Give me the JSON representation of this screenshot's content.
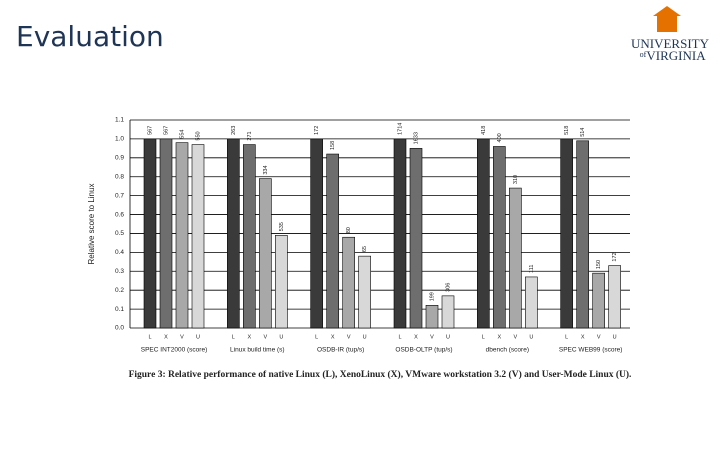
{
  "slide": {
    "title": "Evaluation",
    "logo": [
      "UNIVERSITY",
      "of",
      "VIRGINIA"
    ]
  },
  "chart_data": {
    "type": "bar",
    "y_label": "Relative score to Linux",
    "caption": "Figure 3: Relative performance of native Linux (L), XenoLinux (X), VMware workstation 3.2 (V) and User-Mode Linux (U).",
    "categories": [
      "SPEC INT2000 (score)",
      "Linux build time (s)",
      "OSDB-IR (tup/s)",
      "OSDB-OLTP (tup/s)",
      "dbench (score)",
      "SPEC WEB99 (score)"
    ],
    "series": [
      {
        "name": "L",
        "color": "#3a3a3a",
        "values": [
          1.0,
          1.0,
          1.0,
          1.0,
          1.0,
          1.0
        ],
        "value_labels": [
          "567",
          "263",
          "172",
          "1714",
          "418",
          "518"
        ]
      },
      {
        "name": "X",
        "color": "#6e6e6e",
        "values": [
          1.0,
          0.97,
          0.92,
          0.95,
          0.96,
          0.99
        ],
        "value_labels": [
          "567",
          "271",
          "158",
          "1633",
          "400",
          "514"
        ]
      },
      {
        "name": "V",
        "color": "#a8a8a8",
        "values": [
          0.98,
          0.79,
          0.48,
          0.12,
          0.74,
          0.29
        ],
        "value_labels": [
          "554",
          "334",
          "80",
          "199",
          "310",
          "150"
        ]
      },
      {
        "name": "U",
        "color": "#d8d8d8",
        "values": [
          0.97,
          0.49,
          0.38,
          0.17,
          0.27,
          0.33
        ],
        "value_labels": [
          "550",
          "535",
          "65",
          "306",
          "111",
          "172"
        ]
      }
    ],
    "ylim": [
      0,
      1.1
    ],
    "yticks": [
      {
        "value": 0,
        "label": "0.0"
      },
      0.1,
      0.2,
      0.3,
      0.4,
      0.5,
      0.6,
      0.7,
      0.8,
      0.9,
      {
        "value": 1,
        "label": "1.0"
      },
      1.1
    ],
    "grid": true
  }
}
